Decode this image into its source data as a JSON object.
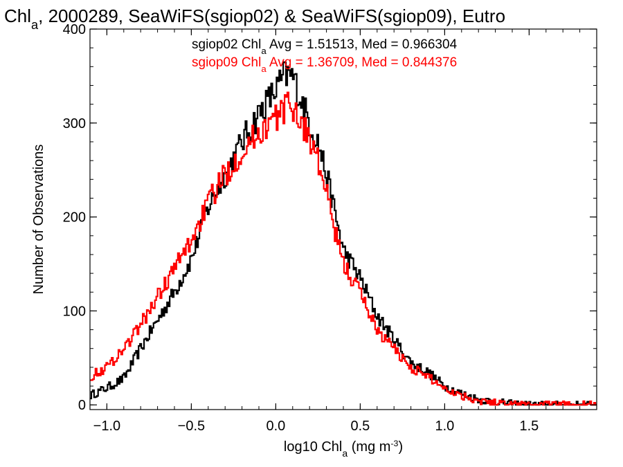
{
  "chart_data": {
    "type": "histogram",
    "title": {
      "parts": [
        {
          "text": "Chl"
        },
        {
          "text": "a",
          "sub": true
        },
        {
          "text": ", 2000289, SeaWiFS(sgiop02) & SeaWiFS(sgiop09), Eutro"
        }
      ]
    },
    "xlabel": {
      "parts": [
        {
          "text": "log10 Chl"
        },
        {
          "text": "a",
          "sub": true
        },
        {
          "text": " (mg m"
        },
        {
          "text": "-3",
          "sup": true
        },
        {
          "text": ")"
        }
      ]
    },
    "ylabel": "Number of Observations",
    "xlim": [
      -1.1,
      1.9
    ],
    "ylim": [
      -5,
      400
    ],
    "x_ticks": [
      {
        "value": -1.0,
        "label": "−1.0"
      },
      {
        "value": -0.5,
        "label": "−0.5"
      },
      {
        "value": 0.0,
        "label": "0.0"
      },
      {
        "value": 0.5,
        "label": "0.5"
      },
      {
        "value": 1.0,
        "label": "1.0"
      },
      {
        "value": 1.5,
        "label": "1.5"
      }
    ],
    "y_ticks": [
      {
        "value": 0,
        "label": "0"
      },
      {
        "value": 100,
        "label": "100"
      },
      {
        "value": 200,
        "label": "200"
      },
      {
        "value": 300,
        "label": "300"
      },
      {
        "value": 400,
        "label": "400"
      }
    ],
    "grid": false,
    "legend_position": "top-center",
    "series": [
      {
        "name": "sgiop02",
        "color": "#000000",
        "legend_parts": [
          {
            "text": "sgiop02 Chl"
          },
          {
            "text": "a",
            "sub": true
          },
          {
            "text": " Avg = 1.51513, Med = 0.966304"
          }
        ],
        "points": [
          [
            -1.1,
            10
          ],
          [
            -1.0,
            18
          ],
          [
            -0.9,
            28
          ],
          [
            -0.8,
            60
          ],
          [
            -0.7,
            90
          ],
          [
            -0.6,
            120
          ],
          [
            -0.5,
            155
          ],
          [
            -0.4,
            210
          ],
          [
            -0.3,
            245
          ],
          [
            -0.2,
            280
          ],
          [
            -0.1,
            310
          ],
          [
            0.0,
            335
          ],
          [
            0.05,
            350
          ],
          [
            0.1,
            350
          ],
          [
            0.15,
            325
          ],
          [
            0.2,
            300
          ],
          [
            0.25,
            280
          ],
          [
            0.3,
            245
          ],
          [
            0.35,
            205
          ],
          [
            0.4,
            165
          ],
          [
            0.5,
            135
          ],
          [
            0.6,
            95
          ],
          [
            0.7,
            70
          ],
          [
            0.8,
            45
          ],
          [
            0.9,
            35
          ],
          [
            1.0,
            20
          ],
          [
            1.1,
            12
          ],
          [
            1.2,
            6
          ],
          [
            1.3,
            3
          ],
          [
            1.4,
            1
          ],
          [
            1.5,
            0
          ],
          [
            1.6,
            0
          ],
          [
            1.7,
            0
          ],
          [
            1.8,
            0
          ],
          [
            1.9,
            0
          ]
        ]
      },
      {
        "name": "sgiop09",
        "color": "#ff0000",
        "legend_parts": [
          {
            "text": "sgiop09 Chl"
          },
          {
            "text": "a",
            "sub": true
          },
          {
            "text": " Avg = 1.36709, Med = 0.844376"
          }
        ],
        "points": [
          [
            -1.1,
            30
          ],
          [
            -1.0,
            40
          ],
          [
            -0.9,
            60
          ],
          [
            -0.8,
            85
          ],
          [
            -0.7,
            115
          ],
          [
            -0.6,
            145
          ],
          [
            -0.5,
            175
          ],
          [
            -0.4,
            215
          ],
          [
            -0.3,
            245
          ],
          [
            -0.2,
            270
          ],
          [
            -0.1,
            290
          ],
          [
            0.0,
            305
          ],
          [
            0.05,
            315
          ],
          [
            0.1,
            320
          ],
          [
            0.15,
            300
          ],
          [
            0.2,
            285
          ],
          [
            0.25,
            260
          ],
          [
            0.3,
            225
          ],
          [
            0.35,
            185
          ],
          [
            0.4,
            150
          ],
          [
            0.5,
            120
          ],
          [
            0.6,
            80
          ],
          [
            0.7,
            60
          ],
          [
            0.8,
            40
          ],
          [
            0.9,
            30
          ],
          [
            1.0,
            18
          ],
          [
            1.1,
            10
          ],
          [
            1.2,
            5
          ],
          [
            1.3,
            2
          ],
          [
            1.4,
            1
          ],
          [
            1.5,
            0
          ],
          [
            1.6,
            0
          ],
          [
            1.7,
            0
          ],
          [
            1.8,
            0
          ],
          [
            1.9,
            0
          ]
        ]
      }
    ]
  }
}
